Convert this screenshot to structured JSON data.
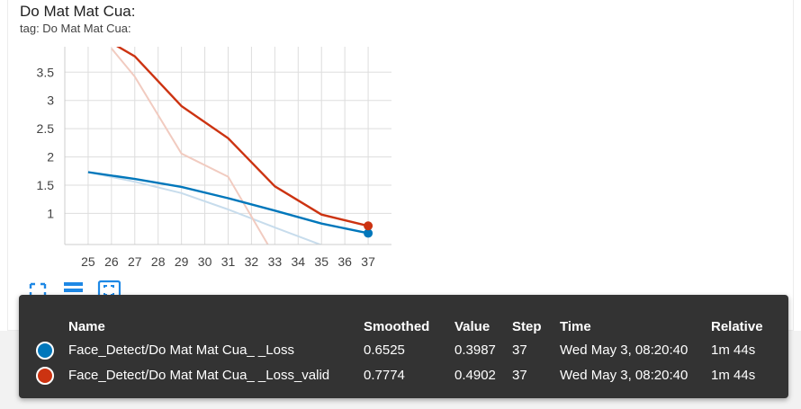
{
  "card": {
    "title": "Do Mat Mat Cua:",
    "subtitle": "tag: Do Mat Mat Cua:"
  },
  "toolbar": [
    {
      "name": "fullscreen-icon"
    },
    {
      "name": "list-icon"
    },
    {
      "name": "fit-domain-icon"
    }
  ],
  "chart_data": {
    "type": "line",
    "x_ticks": [
      25,
      26,
      27,
      28,
      29,
      30,
      31,
      32,
      33,
      34,
      35,
      36,
      37
    ],
    "y_ticks": [
      "1",
      "1.5",
      "2",
      "2.5",
      "3",
      "3.5"
    ],
    "xlim": [
      24,
      38
    ],
    "ylim": [
      0.45,
      3.95
    ],
    "grid": true,
    "series": [
      {
        "name": "Face_Detect/Do Mat Mat Cua_ _Loss",
        "color": "#0077bb",
        "raw_color": "#c7dcec",
        "smoothed": [
          [
            25,
            1.73
          ],
          [
            27,
            1.61
          ],
          [
            29,
            1.47
          ],
          [
            31,
            1.27
          ],
          [
            33,
            1.05
          ],
          [
            35,
            0.82
          ],
          [
            37,
            0.65
          ]
        ],
        "raw": [
          [
            25,
            1.73
          ],
          [
            27,
            1.56
          ],
          [
            29,
            1.36
          ],
          [
            31,
            1.07
          ],
          [
            33,
            0.75
          ],
          [
            35,
            0.44
          ]
        ]
      },
      {
        "name": "Face_Detect/Do Mat Mat Cua_ _Loss_valid",
        "color": "#cc3311",
        "raw_color": "#f1cbc0",
        "smoothed": [
          [
            26,
            4.02
          ],
          [
            27,
            3.78
          ],
          [
            29,
            2.9
          ],
          [
            31,
            2.33
          ],
          [
            33,
            1.48
          ],
          [
            35,
            0.98
          ],
          [
            37,
            0.78
          ]
        ],
        "raw": [
          [
            26,
            3.92
          ],
          [
            27,
            3.42
          ],
          [
            29,
            2.06
          ],
          [
            31,
            1.65
          ],
          [
            32.7,
            0.45
          ]
        ]
      }
    ]
  },
  "tooltip": {
    "headers": {
      "name": "Name",
      "smoothed": "Smoothed",
      "value": "Value",
      "step": "Step",
      "time": "Time",
      "relative": "Relative"
    },
    "rows": [
      {
        "color": "#0077bb",
        "name": "Face_Detect/Do Mat Mat Cua_ _Loss",
        "smoothed": "0.6525",
        "value": "0.3987",
        "step": "37",
        "time": "Wed May 3, 08:20:40",
        "relative": "1m 44s"
      },
      {
        "color": "#cc3311",
        "name": "Face_Detect/Do Mat Mat Cua_ _Loss_valid",
        "smoothed": "0.7774",
        "value": "0.4902",
        "step": "37",
        "time": "Wed May 3, 08:20:40",
        "relative": "1m 44s"
      }
    ]
  }
}
